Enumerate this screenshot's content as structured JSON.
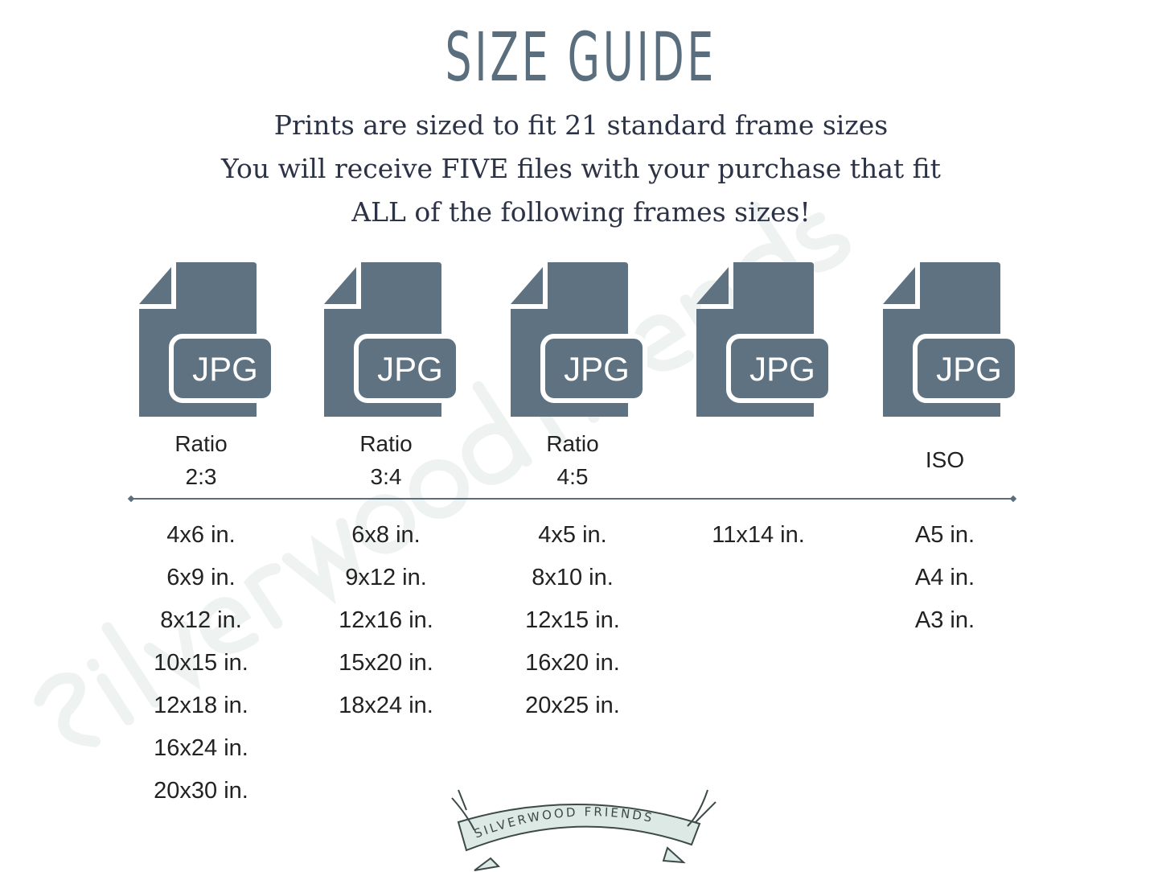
{
  "watermark": "silverwoodfriends",
  "title": "SIZE GUIDE",
  "subtitle": [
    "Prints are sized to fit 21 standard frame sizes",
    "You will receive FIVE files with your purchase that fit",
    "ALL of the following frames sizes!"
  ],
  "icon_color": "#5e7282",
  "columns": [
    {
      "file_type": "JPG",
      "label": [
        "Ratio",
        "2:3"
      ],
      "sizes": [
        "4x6 in.",
        "6x9 in.",
        "8x12 in.",
        "10x15 in.",
        "12x18 in.",
        "16x24 in.",
        "20x30 in."
      ]
    },
    {
      "file_type": "JPG",
      "label": [
        "Ratio",
        "3:4"
      ],
      "sizes": [
        "6x8 in.",
        "9x12 in.",
        "12x16 in.",
        "15x20 in.",
        "18x24 in."
      ]
    },
    {
      "file_type": "JPG",
      "label": [
        "Ratio",
        "4:5"
      ],
      "sizes": [
        "4x5 in.",
        "8x10 in.",
        "12x15 in.",
        "16x20 in.",
        "20x25 in."
      ]
    },
    {
      "file_type": "JPG",
      "label": [],
      "sizes": [
        "11x14 in."
      ]
    },
    {
      "file_type": "JPG",
      "label": [
        "ISO"
      ],
      "sizes": [
        "A5 in.",
        "A4 in.",
        "A3 in."
      ]
    }
  ],
  "logo": "SILVERWOOD FRIENDS"
}
